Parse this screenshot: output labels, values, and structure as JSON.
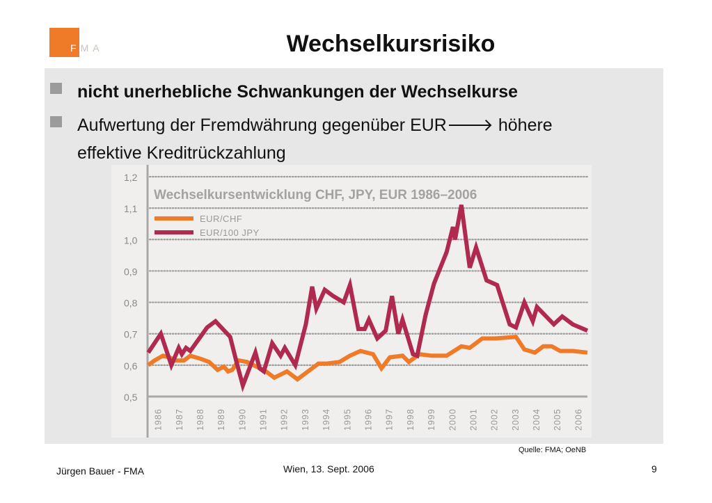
{
  "logo": {
    "letter_f": "F",
    "letters_ma": "MA",
    "accent": "#ef7a27"
  },
  "slide": {
    "title": "Wechselkursrisiko",
    "bullets": [
      {
        "text": "nicht unerhebliche Schwankungen der Wechselkurse",
        "bold": true
      },
      {
        "text": "Aufwertung der Fremdwährung gegenüber EUR",
        "arrow": "🡒",
        "text_after_arrow": " höhere",
        "line2": "effektive Kreditrückzahlung",
        "bold": false
      }
    ],
    "source": "Quelle: FMA; OeNB"
  },
  "footer": {
    "author": "Jürgen Bauer - FMA",
    "date": "Wien, 13. Sept. 2006",
    "page": "9"
  },
  "chart_data": {
    "type": "line",
    "title": "Wechselkursentwicklung CHF, JPY, EUR 1986–2006",
    "xlabel": "",
    "ylabel": "",
    "ylim": [
      0.5,
      1.2
    ],
    "xlim": [
      1986,
      2006.9
    ],
    "y_ticks": [
      "1,2",
      "1,1",
      "1,0",
      "0,9",
      "0,8",
      "0,7",
      "0,6",
      "0,5"
    ],
    "x_ticks": [
      "1986",
      "1987",
      "1988",
      "1989",
      "1990",
      "1991",
      "1992",
      "1993",
      "1994",
      "1995",
      "1996",
      "1997",
      "1998",
      "1999",
      "2000",
      "2001",
      "2002",
      "2003",
      "2004",
      "2005",
      "2006"
    ],
    "grid": "horizontal dotted",
    "legend_position": "top-left",
    "series": [
      {
        "name": "EUR/CHF",
        "color": "#ef7a27",
        "points": [
          [
            1986.0,
            0.6
          ],
          [
            1986.3,
            0.615
          ],
          [
            1986.7,
            0.63
          ],
          [
            1987.0,
            0.625
          ],
          [
            1987.3,
            0.615
          ],
          [
            1987.7,
            0.615
          ],
          [
            1988.0,
            0.63
          ],
          [
            1988.5,
            0.62
          ],
          [
            1988.9,
            0.61
          ],
          [
            1989.3,
            0.585
          ],
          [
            1989.6,
            0.595
          ],
          [
            1989.8,
            0.58
          ],
          [
            1990.0,
            0.585
          ],
          [
            1990.3,
            0.615
          ],
          [
            1990.7,
            0.61
          ],
          [
            1991.0,
            0.6
          ],
          [
            1991.5,
            0.585
          ],
          [
            1992.0,
            0.56
          ],
          [
            1992.6,
            0.58
          ],
          [
            1993.1,
            0.555
          ],
          [
            1993.6,
            0.58
          ],
          [
            1994.1,
            0.605
          ],
          [
            1994.5,
            0.605
          ],
          [
            1995.1,
            0.61
          ],
          [
            1995.6,
            0.63
          ],
          [
            1996.1,
            0.645
          ],
          [
            1996.7,
            0.635
          ],
          [
            1997.1,
            0.59
          ],
          [
            1997.5,
            0.625
          ],
          [
            1998.1,
            0.63
          ],
          [
            1998.4,
            0.61
          ],
          [
            1998.9,
            0.635
          ],
          [
            1999.5,
            0.63
          ],
          [
            2000.2,
            0.63
          ],
          [
            2000.9,
            0.66
          ],
          [
            2001.3,
            0.655
          ],
          [
            2001.9,
            0.685
          ],
          [
            2002.5,
            0.685
          ],
          [
            2003.5,
            0.69
          ],
          [
            2003.9,
            0.65
          ],
          [
            2004.4,
            0.64
          ],
          [
            2004.8,
            0.66
          ],
          [
            2005.2,
            0.66
          ],
          [
            2005.6,
            0.645
          ],
          [
            2006.2,
            0.645
          ],
          [
            2006.9,
            0.64
          ]
        ]
      },
      {
        "name": "EUR/100 JPY",
        "color": "#b0294f",
        "points": [
          [
            1986.0,
            0.64
          ],
          [
            1986.6,
            0.7
          ],
          [
            1987.1,
            0.6
          ],
          [
            1987.45,
            0.655
          ],
          [
            1987.6,
            0.635
          ],
          [
            1987.8,
            0.655
          ],
          [
            1988.0,
            0.645
          ],
          [
            1988.8,
            0.72
          ],
          [
            1989.2,
            0.74
          ],
          [
            1989.9,
            0.69
          ],
          [
            1990.2,
            0.61
          ],
          [
            1990.5,
            0.535
          ],
          [
            1991.1,
            0.64
          ],
          [
            1991.3,
            0.59
          ],
          [
            1991.5,
            0.58
          ],
          [
            1991.9,
            0.67
          ],
          [
            1992.3,
            0.63
          ],
          [
            1992.5,
            0.655
          ],
          [
            1993.0,
            0.6
          ],
          [
            1993.5,
            0.73
          ],
          [
            1993.8,
            0.85
          ],
          [
            1994.0,
            0.78
          ],
          [
            1994.4,
            0.84
          ],
          [
            1994.8,
            0.82
          ],
          [
            1995.3,
            0.8
          ],
          [
            1995.6,
            0.855
          ],
          [
            1996.0,
            0.715
          ],
          [
            1996.3,
            0.715
          ],
          [
            1996.5,
            0.745
          ],
          [
            1996.9,
            0.685
          ],
          [
            1997.3,
            0.71
          ],
          [
            1997.6,
            0.82
          ],
          [
            1997.9,
            0.7
          ],
          [
            1998.1,
            0.745
          ],
          [
            1998.6,
            0.635
          ],
          [
            1998.8,
            0.63
          ],
          [
            1999.2,
            0.76
          ],
          [
            1999.6,
            0.86
          ],
          [
            2000.2,
            0.96
          ],
          [
            2000.5,
            1.04
          ],
          [
            2000.6,
            1.0
          ],
          [
            2000.9,
            1.11
          ],
          [
            2001.3,
            0.91
          ],
          [
            2001.6,
            0.975
          ],
          [
            2002.1,
            0.87
          ],
          [
            2002.6,
            0.855
          ],
          [
            2003.2,
            0.73
          ],
          [
            2003.5,
            0.72
          ],
          [
            2003.9,
            0.8
          ],
          [
            2004.3,
            0.74
          ],
          [
            2004.5,
            0.785
          ],
          [
            2005.3,
            0.73
          ],
          [
            2005.7,
            0.755
          ],
          [
            2006.2,
            0.73
          ],
          [
            2006.9,
            0.71
          ]
        ]
      }
    ]
  }
}
